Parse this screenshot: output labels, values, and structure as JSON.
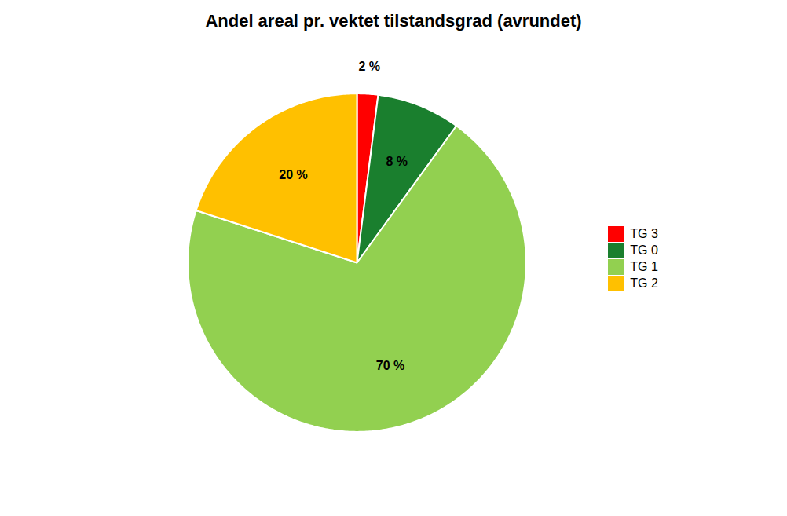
{
  "chart_data": {
    "type": "pie",
    "title": "Andel areal pr. vektet tilstandsgrad (avrundet)",
    "categories": [
      "TG 3",
      "TG 0",
      "TG 1",
      "TG 2"
    ],
    "values": [
      2,
      8,
      70,
      20
    ],
    "value_labels": [
      "2 %",
      "8 %",
      "70 %",
      "20 %"
    ],
    "colors": [
      "#ff0000",
      "#1a7f2e",
      "#92d050",
      "#ffc000"
    ],
    "data_labels": true,
    "legend": "right"
  }
}
